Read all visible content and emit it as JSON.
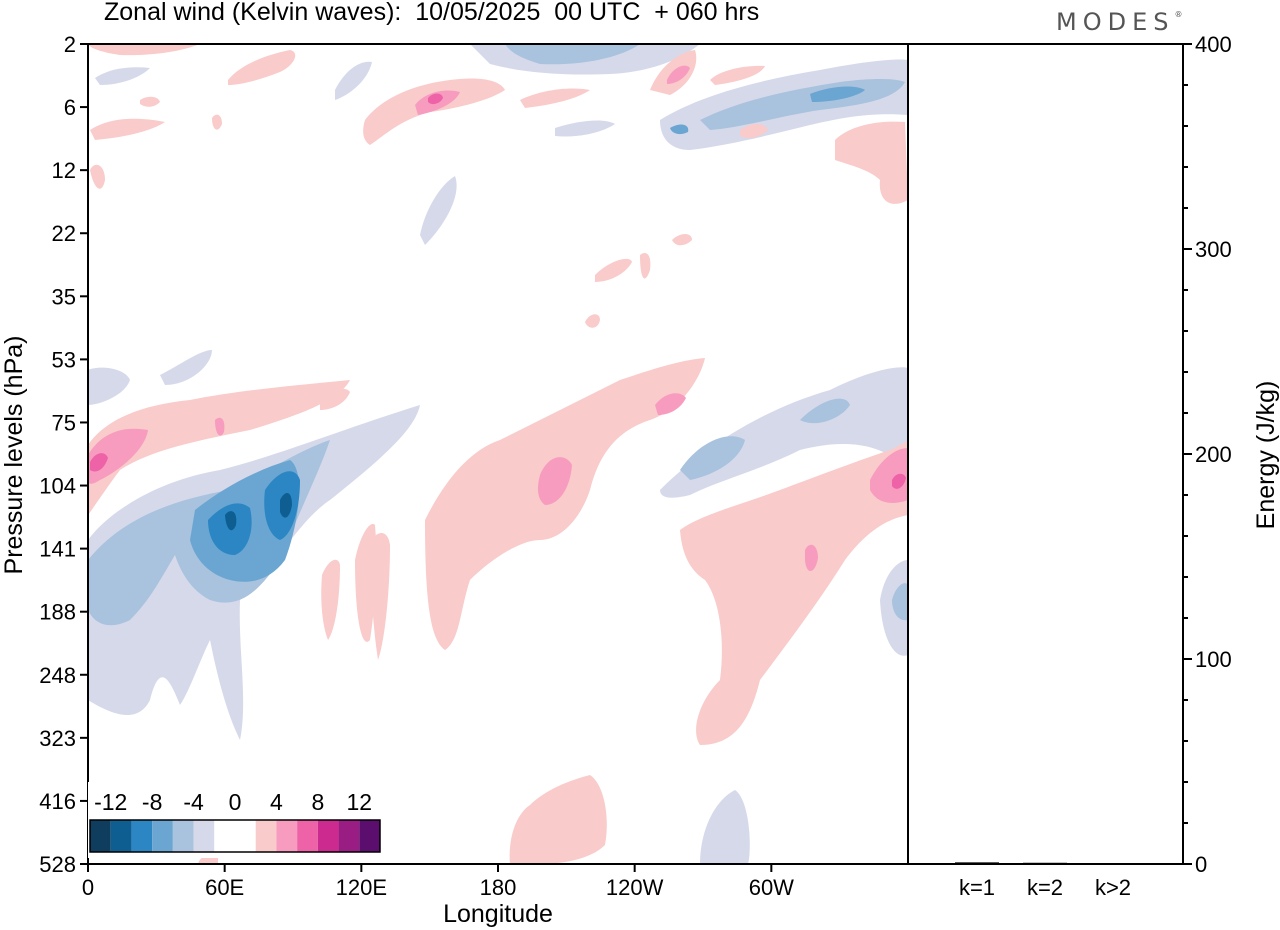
{
  "header": {
    "title": "Zonal wind (Kelvin waves):  10/05/2025  00 UTC  + 060 hrs",
    "brand": "MODES",
    "brand_mark": "®"
  },
  "chart_data": [
    {
      "type": "heatmap",
      "title": "Zonal wind (Kelvin waves):  10/05/2025  00 UTC  + 060 hrs",
      "xlabel": "Longitude",
      "ylabel": "Pressure levels (hPa)",
      "x_ticks": [
        "0",
        "60E",
        "120E",
        "180",
        "120W",
        "60W"
      ],
      "x_tick_values": [
        0,
        60,
        120,
        180,
        240,
        300
      ],
      "xlim": [
        0,
        360
      ],
      "y_ticks": [
        "2",
        "6",
        "12",
        "22",
        "35",
        "53",
        "75",
        "104",
        "141",
        "188",
        "248",
        "323",
        "416",
        "528"
      ],
      "y_scale": "pressure levels, top = 2 hPa",
      "colorbar": {
        "labels": [
          "-12",
          "-8",
          "-4",
          "0",
          "4",
          "8",
          "12"
        ],
        "colors": [
          "#0f3d5e",
          "#0e5e91",
          "#2b86c3",
          "#6aa6d1",
          "#a9c2de",
          "#d6d9ea",
          "#ffffff",
          "#ffffff",
          "#f9cbca",
          "#f79cbf",
          "#ee62a8",
          "#cc2a8e",
          "#9a1d83",
          "#5b0e6d"
        ]
      },
      "legend_placement": "bottom-left",
      "grid": false
    },
    {
      "type": "bar",
      "ylabel": "Energy (J/kg)",
      "categories": [
        "k=1",
        "k=2",
        "k>2"
      ],
      "values": [
        0.8,
        0.6,
        0.4
      ],
      "ylim": [
        0,
        400
      ],
      "y_ticks": [
        "0",
        "100",
        "200",
        "300",
        "400"
      ],
      "y_tick_values": [
        0,
        100,
        200,
        300,
        400
      ]
    }
  ]
}
